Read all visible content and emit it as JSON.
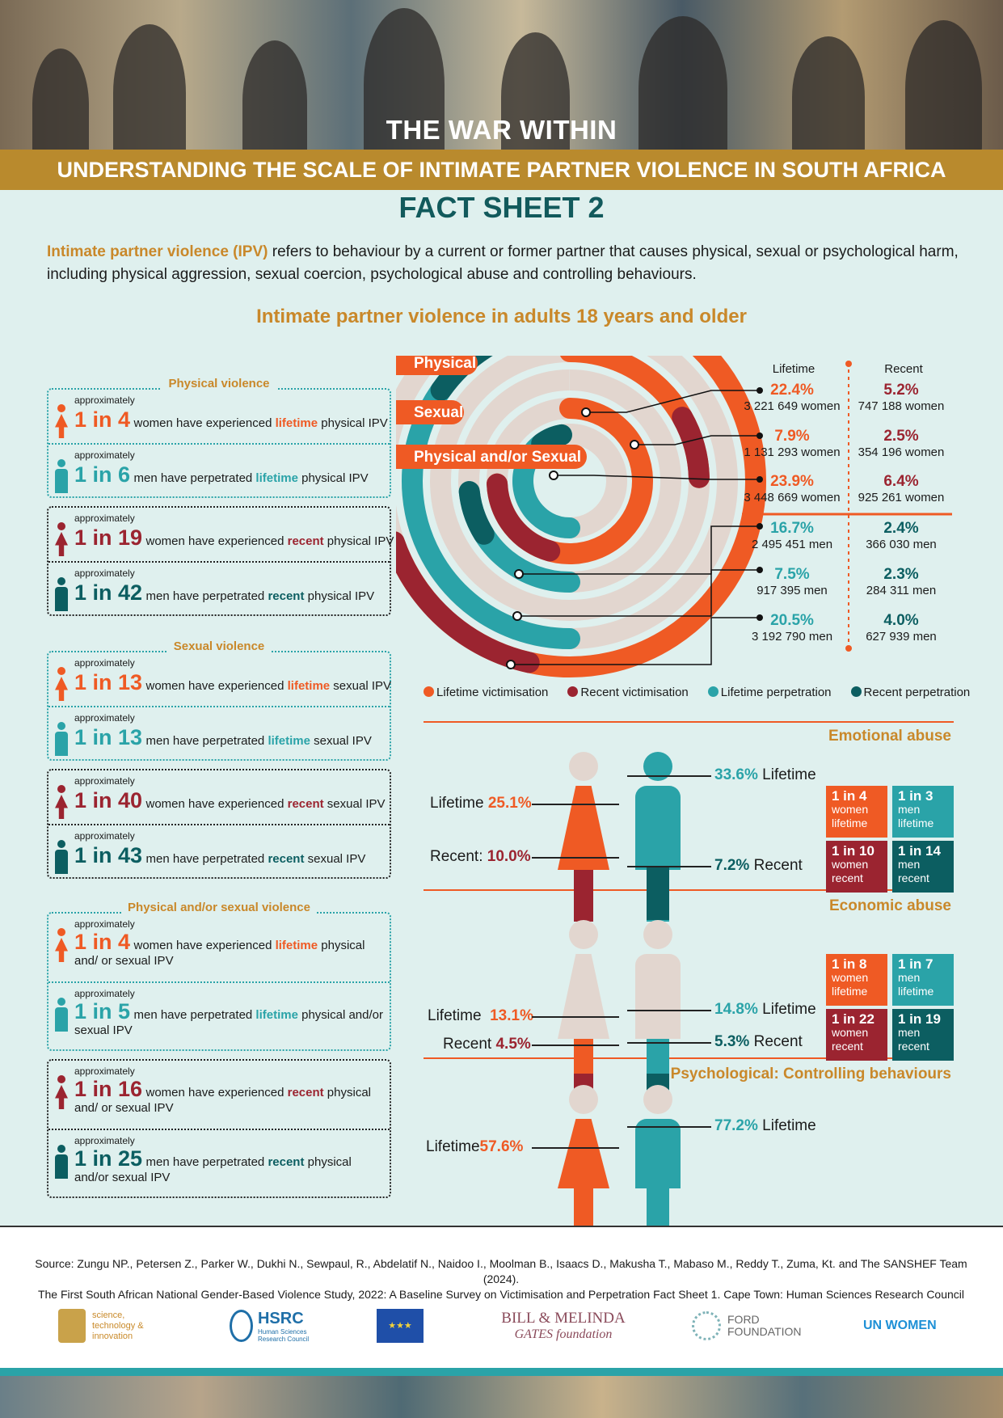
{
  "header": {
    "title": "THE WAR WITHIN",
    "subtitle": "UNDERSTANDING THE SCALE OF INTIMATE PARTNER VIOLENCE IN SOUTH AFRICA",
    "fact_sheet": "FACT SHEET 2"
  },
  "intro": {
    "term": "Intimate partner violence (IPV)",
    "text": " refers to behaviour by a current or former partner that causes physical, sexual or psychological harm, including physical aggression, sexual coercion, psychological abuse and controlling behaviours."
  },
  "section_title": "Intimate partner violence in adults 18 years and older",
  "approx": "approximately",
  "physical": {
    "label": "Physical violence",
    "r1": {
      "big": "1 in 4",
      "a": "women have experienced ",
      "hl": "lifetime",
      "b": " physical IPV"
    },
    "r2": {
      "big": "1 in 6",
      "a": "men have perpetrated ",
      "hl": "lifetime",
      "b": " physical IPV"
    },
    "r3": {
      "big": "1 in 19",
      "a": "women have experienced ",
      "hl": "recent",
      "b": " physical IPV"
    },
    "r4": {
      "big": "1 in 42",
      "a": "men have perpetrated ",
      "hl": "recent",
      "b": " physical IPV"
    }
  },
  "sexual": {
    "label": "Sexual violence",
    "r1": {
      "big": "1 in 13",
      "a": "women have experienced ",
      "hl": "lifetime",
      "b": " sexual IPV"
    },
    "r2": {
      "big": "1 in 13",
      "a": "men have perpetrated ",
      "hl": "lifetime",
      "b": " sexual IPV"
    },
    "r3": {
      "big": "1 in 40",
      "a": "women have experienced ",
      "hl": "recent",
      "b": " sexual IPV"
    },
    "r4": {
      "big": "1 in 43",
      "a": "men have perpetrated ",
      "hl": "recent",
      "b": " sexual IPV"
    }
  },
  "both": {
    "label": "Physical and/or sexual violence",
    "r1": {
      "big": "1 in 4",
      "a": "women have experienced ",
      "hl": "lifetime",
      "b": " physical and/ or sexual IPV"
    },
    "r2": {
      "big": "1 in 5",
      "a": "men have perpetrated ",
      "hl": "lifetime",
      "b": " physical and/or sexual IPV"
    },
    "r3": {
      "big": "1 in 16",
      "a": "women have experienced ",
      "hl": "recent",
      "b": " physical and/ or sexual IPV"
    },
    "r4": {
      "big": "1 in 25",
      "a": "men have perpetrated ",
      "hl": "recent",
      "b": " physical and/or sexual IPV"
    }
  },
  "chart_data": {
    "type": "radial-bar",
    "rings": [
      "Physical",
      "Sexual",
      "Physical and/or Sexual"
    ],
    "columns": [
      "Lifetime",
      "Recent"
    ],
    "series": [
      {
        "name": "Lifetime victimisation",
        "values": [
          22.4,
          7.9,
          23.9
        ],
        "counts": [
          "3 221 649 women",
          "1 131 293 women",
          "3 448 669 women"
        ]
      },
      {
        "name": "Recent victimisation",
        "values": [
          5.2,
          2.5,
          6.4
        ],
        "counts": [
          "747 188 women",
          "354 196 women",
          "925 261 women"
        ]
      },
      {
        "name": "Lifetime perpetration",
        "values": [
          16.7,
          7.5,
          20.5
        ],
        "counts": [
          "2 495 451 men",
          "917 395 men",
          "3 192 790 men"
        ]
      },
      {
        "name": "Recent perpetration",
        "values": [
          2.4,
          2.3,
          4.0
        ],
        "counts": [
          "366 030 men",
          "284 311 men",
          "627 939 men"
        ]
      }
    ],
    "colors": {
      "lv": "#ef5a24",
      "rv": "#9b2430",
      "lp": "#2aa3a8",
      "rp": "#0c5e61",
      "bg": "#e2d6cf"
    }
  },
  "emotional": {
    "title": "Emotional abuse",
    "w_life_label": "Lifetime",
    "w_life": "25.1%",
    "w_rec_label": "Recent:",
    "w_rec": "10.0%",
    "m_life": "33.6%",
    "m_life_label": "Lifetime",
    "m_rec": "7.2%",
    "m_rec_label": "Recent",
    "tiles": [
      {
        "a": "1 in 4",
        "b": "women",
        "c": "lifetime"
      },
      {
        "a": "1 in 3",
        "b": "men",
        "c": "lifetime"
      },
      {
        "a": "1 in 10",
        "b": "women",
        "c": "recent"
      },
      {
        "a": "1 in 14",
        "b": "men",
        "c": "recent"
      }
    ]
  },
  "economic": {
    "title": "Economic abuse",
    "w_life_label": "Lifetime",
    "w_life": "13.1%",
    "w_rec_label": "Recent",
    "w_rec": "4.5%",
    "m_life": "14.8%",
    "m_life_label": "Lifetime",
    "m_rec": "5.3%",
    "m_rec_label": "Recent",
    "tiles": [
      {
        "a": "1 in 8",
        "b": "women",
        "c": "lifetime"
      },
      {
        "a": "1 in 7",
        "b": "men",
        "c": "lifetime"
      },
      {
        "a": "1 in 22",
        "b": "women",
        "c": "recent"
      },
      {
        "a": "1 in 19",
        "b": "men",
        "c": "recent"
      }
    ]
  },
  "psych": {
    "title": "Psychological: Controlling behaviours",
    "w_life_label": "Lifetime",
    "w_life": "57.6%",
    "m_life": "77.2%",
    "m_life_label": "Lifetime"
  },
  "source": {
    "line1": "Source: Zungu NP., Petersen Z., Parker W., Dukhi N., Sewpaul, R., Abdelatif N., Naidoo I., Moolman B., Isaacs D., Makusha T., Mabaso M., Reddy T., Zuma, Kt. and The SANSHEF Team (2024).",
    "line2": "The First South African National Gender-Based Violence Study, 2022: A Baseline Survey on Victimisation and Perpetration Fact Sheet 1. Cape Town: Human Sciences Research Council"
  },
  "logos": {
    "dsti": "science, technology & innovation",
    "hsrc": "HSRC",
    "hsrc_sub": "Human Sciences Research Council",
    "gates1": "BILL & MELINDA",
    "gates2": "GATES foundation",
    "ford": "FORD FOUNDATION",
    "unwomen": "UN WOMEN"
  }
}
